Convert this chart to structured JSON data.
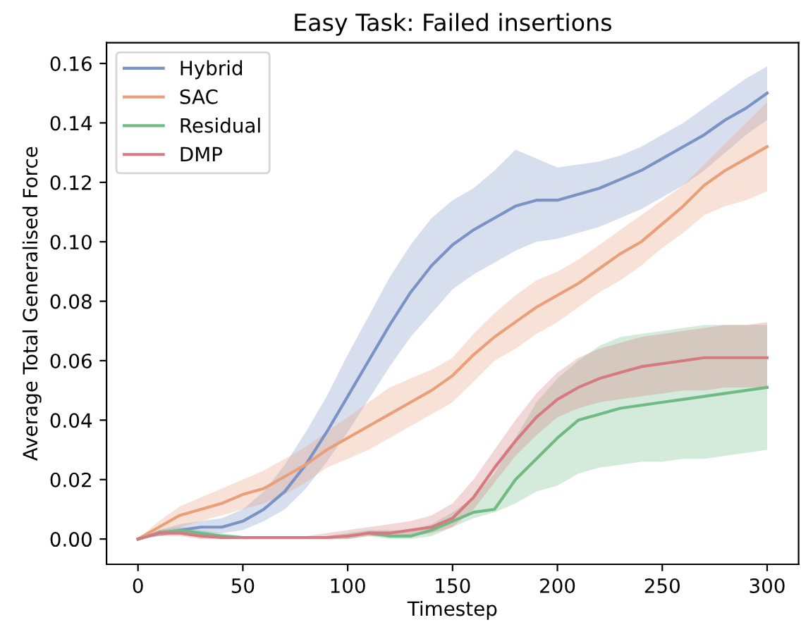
{
  "chart_data": {
    "type": "line",
    "title": "Easy Task: Failed insertions",
    "xlabel": "Timestep",
    "ylabel": "Average Total Generalised Force",
    "x": [
      0,
      10,
      20,
      30,
      40,
      50,
      60,
      70,
      80,
      90,
      100,
      110,
      120,
      130,
      140,
      150,
      160,
      170,
      180,
      190,
      200,
      210,
      220,
      230,
      240,
      250,
      260,
      270,
      280,
      290,
      300
    ],
    "series": [
      {
        "name": "Hybrid",
        "color": "#7b93c4",
        "values": [
          0,
          0.002,
          0.003,
          0.004,
          0.004,
          0.006,
          0.01,
          0.016,
          0.025,
          0.036,
          0.048,
          0.06,
          0.072,
          0.083,
          0.092,
          0.099,
          0.104,
          0.108,
          0.112,
          0.114,
          0.114,
          0.116,
          0.118,
          0.121,
          0.124,
          0.128,
          0.132,
          0.136,
          0.141,
          0.145,
          0.15
        ],
        "lower": [
          0,
          0.001,
          0.002,
          0.002,
          0.002,
          0.003,
          0.006,
          0.01,
          0.017,
          0.026,
          0.036,
          0.047,
          0.058,
          0.068,
          0.076,
          0.084,
          0.089,
          0.093,
          0.097,
          0.1,
          0.101,
          0.103,
          0.105,
          0.108,
          0.111,
          0.115,
          0.119,
          0.124,
          0.13,
          0.136,
          0.141
        ],
        "upper": [
          0,
          0.003,
          0.005,
          0.006,
          0.007,
          0.01,
          0.016,
          0.025,
          0.036,
          0.048,
          0.062,
          0.075,
          0.088,
          0.099,
          0.108,
          0.114,
          0.118,
          0.124,
          0.131,
          0.128,
          0.125,
          0.126,
          0.127,
          0.129,
          0.132,
          0.136,
          0.14,
          0.145,
          0.15,
          0.155,
          0.159
        ]
      },
      {
        "name": "SAC",
        "color": "#e8a07a",
        "values": [
          0,
          0.004,
          0.008,
          0.01,
          0.012,
          0.015,
          0.017,
          0.021,
          0.025,
          0.03,
          0.034,
          0.038,
          0.042,
          0.046,
          0.05,
          0.055,
          0.062,
          0.068,
          0.073,
          0.078,
          0.082,
          0.086,
          0.091,
          0.096,
          0.1,
          0.106,
          0.112,
          0.119,
          0.124,
          0.128,
          0.132
        ],
        "lower": [
          0,
          0.002,
          0.004,
          0.006,
          0.008,
          0.01,
          0.012,
          0.015,
          0.019,
          0.024,
          0.027,
          0.03,
          0.034,
          0.038,
          0.042,
          0.046,
          0.053,
          0.06,
          0.064,
          0.069,
          0.073,
          0.078,
          0.083,
          0.087,
          0.092,
          0.098,
          0.103,
          0.109,
          0.112,
          0.114,
          0.117
        ],
        "upper": [
          0,
          0.006,
          0.011,
          0.014,
          0.017,
          0.02,
          0.023,
          0.027,
          0.031,
          0.036,
          0.041,
          0.046,
          0.051,
          0.054,
          0.057,
          0.061,
          0.069,
          0.076,
          0.082,
          0.087,
          0.09,
          0.094,
          0.099,
          0.104,
          0.109,
          0.114,
          0.119,
          0.126,
          0.133,
          0.14,
          0.147
        ]
      },
      {
        "name": "Residual",
        "color": "#6fba85",
        "values": [
          0,
          0.002,
          0.003,
          0.002,
          0.001,
          0.0005,
          null,
          null,
          null,
          null,
          null,
          0.002,
          0.001,
          0.001,
          0.003,
          0.006,
          0.009,
          0.01,
          0.02,
          0.027,
          0.034,
          0.04,
          0.042,
          0.044,
          0.045,
          0.046,
          0.047,
          0.048,
          0.049,
          0.05,
          0.051
        ],
        "lower": [
          0,
          0.001,
          0.002,
          0.001,
          0,
          0,
          0,
          0,
          0,
          0,
          0,
          0.001,
          0,
          0,
          0.001,
          0.004,
          0.007,
          0.009,
          0.012,
          0.016,
          0.018,
          0.022,
          0.024,
          0.025,
          0.026,
          0.026,
          0.027,
          0.027,
          0.028,
          0.029,
          0.03
        ],
        "upper": [
          0,
          0.003,
          0.004,
          0.003,
          0.002,
          0.001,
          0.001,
          0.001,
          0.001,
          0.001,
          0.002,
          0.003,
          0.003,
          0.003,
          0.005,
          0.009,
          0.014,
          0.022,
          0.034,
          0.046,
          0.054,
          0.06,
          0.065,
          0.068,
          0.069,
          0.07,
          0.071,
          0.072,
          0.072,
          0.072,
          0.072
        ]
      },
      {
        "name": "DMP",
        "color": "#d57a80",
        "values": [
          0,
          0.002,
          0.002,
          0.001,
          0.0005,
          0.0005,
          0.0005,
          0.0005,
          0.0005,
          0.0005,
          0.001,
          0.002,
          0.002,
          0.003,
          0.004,
          0.007,
          0.014,
          0.024,
          0.033,
          0.041,
          0.047,
          0.051,
          0.054,
          0.056,
          0.058,
          0.059,
          0.06,
          0.061,
          0.061,
          0.061,
          0.061
        ],
        "lower": [
          0,
          0.001,
          0.001,
          0,
          0,
          0,
          0,
          0,
          0,
          0,
          0,
          0.001,
          0.001,
          0.001,
          0.002,
          0.004,
          0.01,
          0.019,
          0.028,
          0.035,
          0.041,
          0.044,
          0.046,
          0.047,
          0.048,
          0.049,
          0.05,
          0.05,
          0.051,
          0.051,
          0.051
        ],
        "upper": [
          0,
          0.003,
          0.003,
          0.002,
          0.001,
          0.001,
          0.001,
          0.001,
          0.001,
          0.002,
          0.003,
          0.004,
          0.005,
          0.006,
          0.008,
          0.012,
          0.02,
          0.03,
          0.04,
          0.049,
          0.056,
          0.061,
          0.064,
          0.066,
          0.068,
          0.069,
          0.07,
          0.071,
          0.072,
          0.072,
          0.073
        ]
      }
    ],
    "xlim": [
      -15,
      315
    ],
    "xticks": [
      0,
      50,
      100,
      150,
      200,
      250,
      300
    ],
    "ylim": [
      -0.0085,
      0.167
    ],
    "yticks": [
      {
        "value": 0,
        "label": "0.00"
      },
      {
        "value": 0.02,
        "label": "0.02"
      },
      {
        "value": 0.04,
        "label": "0.04"
      },
      {
        "value": 0.06,
        "label": "0.06"
      },
      {
        "value": 0.08,
        "label": "0.08"
      },
      {
        "value": 0.1,
        "label": "0.10"
      },
      {
        "value": 0.12,
        "label": "0.12"
      },
      {
        "value": 0.14,
        "label": "0.14"
      },
      {
        "value": 0.16,
        "label": "0.16"
      }
    ],
    "legend": "top left",
    "marker": "none",
    "line_style": "solid"
  }
}
